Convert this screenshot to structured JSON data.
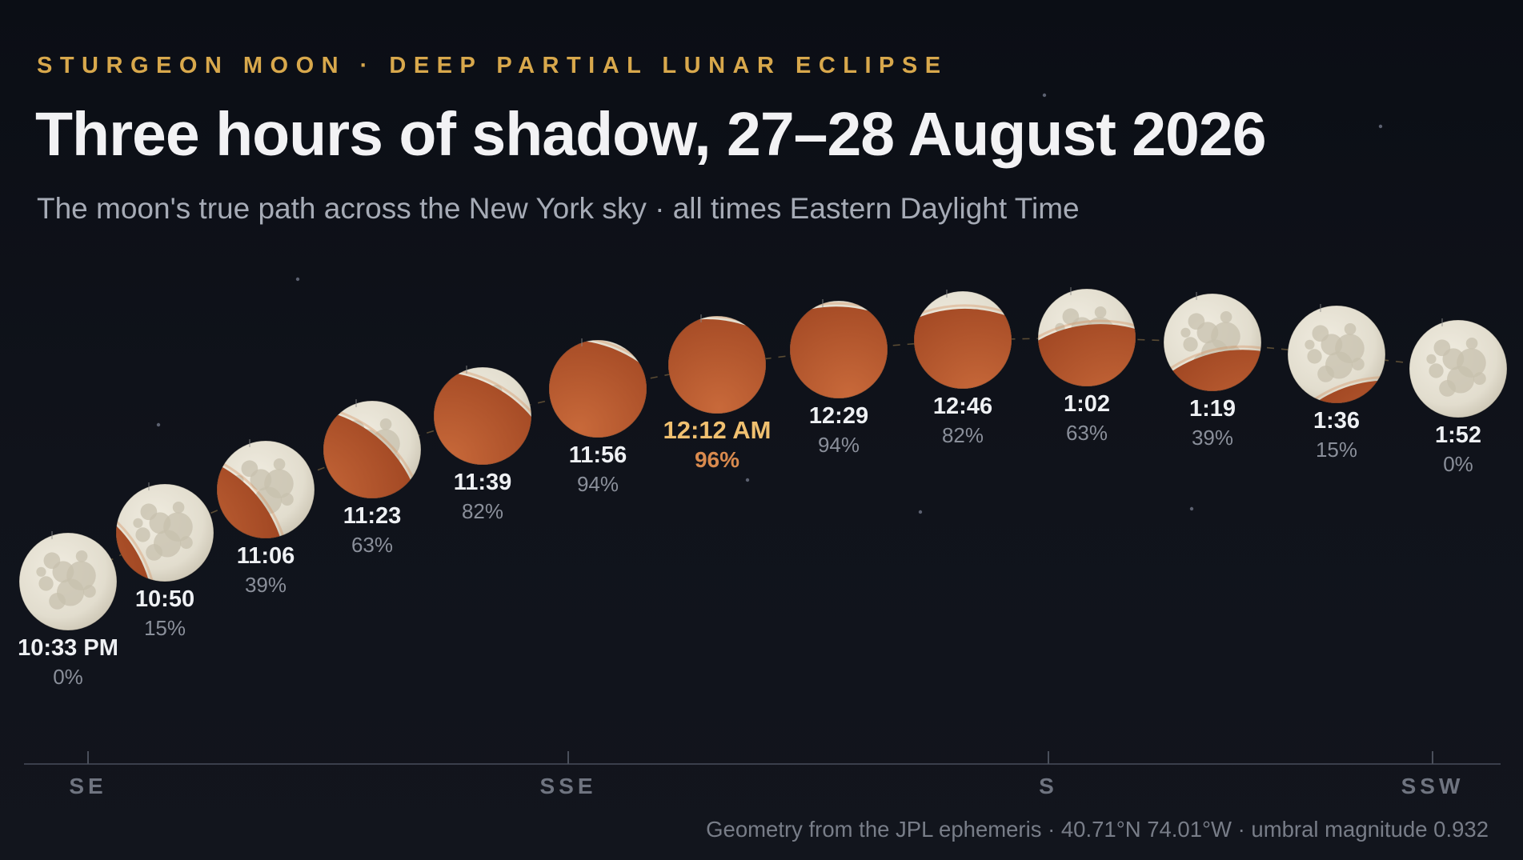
{
  "header": {
    "eyebrow": "STURGEON MOON · DEEP PARTIAL LUNAR ECLIPSE",
    "title": "Three hours of shadow, 27–28 August 2026",
    "subtitle": "The moon's true path across the New York sky · all times Eastern Daylight Time"
  },
  "colors": {
    "background": "#0d1018",
    "accent_gold": "#d8a84c",
    "max_label": "#f0c070",
    "max_percent": "#d98a4e",
    "moon_surface": "#e6e1d3",
    "umbra": "#b85a2c"
  },
  "phases": [
    {
      "time": "10:33 PM",
      "coverage": "0%",
      "fraction": 0
    },
    {
      "time": "10:50",
      "coverage": "15%",
      "fraction": 0.15
    },
    {
      "time": "11:06",
      "coverage": "39%",
      "fraction": 0.39
    },
    {
      "time": "11:23",
      "coverage": "63%",
      "fraction": 0.63
    },
    {
      "time": "11:39",
      "coverage": "82%",
      "fraction": 0.82
    },
    {
      "time": "11:56",
      "coverage": "94%",
      "fraction": 0.94
    },
    {
      "time": "12:12 AM",
      "coverage": "96%",
      "fraction": 0.96,
      "max": true
    },
    {
      "time": "12:29",
      "coverage": "94%",
      "fraction": 0.94
    },
    {
      "time": "12:46",
      "coverage": "82%",
      "fraction": 0.82
    },
    {
      "time": "1:02",
      "coverage": "63%",
      "fraction": 0.63
    },
    {
      "time": "1:19",
      "coverage": "39%",
      "fraction": 0.39
    },
    {
      "time": "1:36",
      "coverage": "15%",
      "fraction": 0.15
    },
    {
      "time": "1:52",
      "coverage": "0%",
      "fraction": 0
    }
  ],
  "compass": [
    "SE",
    "SSE",
    "S",
    "SSW"
  ],
  "footnote": "Geometry from the JPL ephemeris · 40.71°N 74.01°W · umbral magnitude 0.932"
}
